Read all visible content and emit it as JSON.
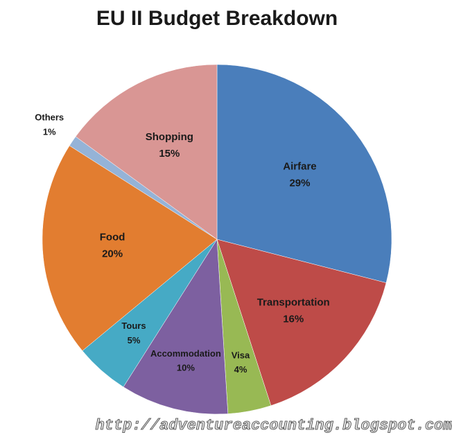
{
  "chart_data": {
    "type": "pie",
    "title": "EU II Budget Breakdown",
    "categories": [
      "Airfare",
      "Transportation",
      "Visa",
      "Accommodation",
      "Tours",
      "Food",
      "Others",
      "Shopping"
    ],
    "values": [
      29,
      16,
      4,
      10,
      5,
      20,
      1,
      15
    ],
    "value_labels": [
      "29%",
      "16%",
      "4%",
      "10%",
      "5%",
      "20%",
      "1%",
      "15%"
    ],
    "colors": [
      "#4a7ebb",
      "#be4b48",
      "#98b954",
      "#7d60a0",
      "#46aac5",
      "#e27d30",
      "#95b3d7",
      "#d99694"
    ],
    "watermark": "http://adventureaccounting.blogspot.com"
  }
}
